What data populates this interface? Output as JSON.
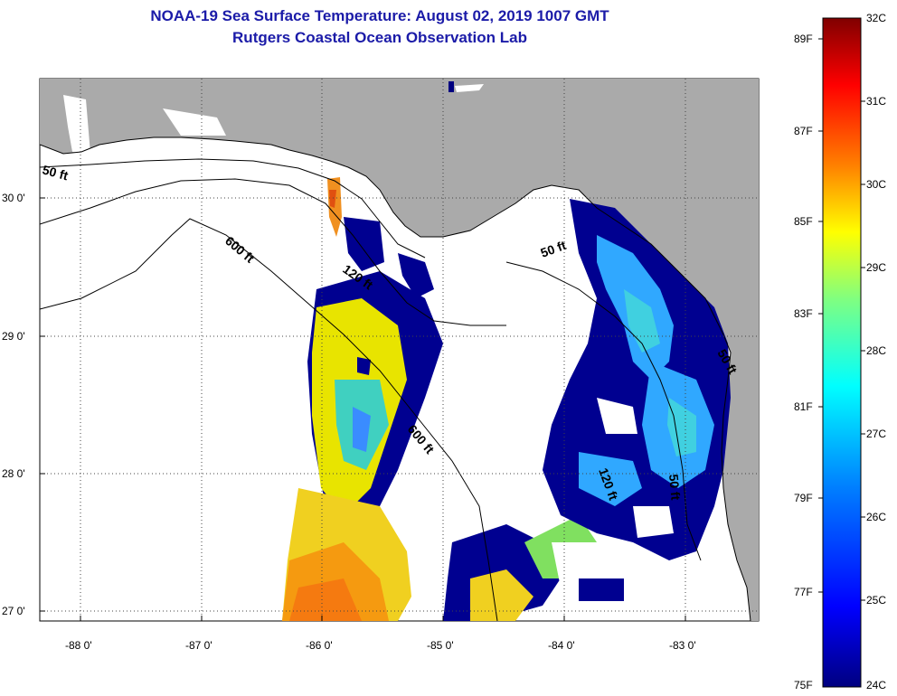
{
  "header": {
    "title_line1": "NOAA-19 Sea Surface Temperature:  August 02, 2019 1007 GMT",
    "title_line2": "Rutgers Coastal Ocean Observation Lab"
  },
  "map": {
    "lon_ticks": [
      "-88 0'",
      "-87 0'",
      "-86 0'",
      "-85 0'",
      "-84 0'",
      "-83 0'"
    ],
    "lat_ticks": [
      "30 0'",
      "29 0'",
      "28 0'",
      "27 0'"
    ],
    "contours": [
      {
        "label": "50 ft"
      },
      {
        "label": "600 ft"
      },
      {
        "label": "120 ft"
      },
      {
        "label": "600 ft"
      },
      {
        "label": "50 ft"
      },
      {
        "label": "120 ft"
      },
      {
        "label": "50 ft"
      },
      {
        "label": "50 ft"
      }
    ],
    "land_color": "#aaaaaa",
    "no_data_color": "#ffffff"
  },
  "colorbar": {
    "fahrenheit_labels": [
      "89F",
      "87F",
      "85F",
      "83F",
      "81F",
      "79F",
      "77F",
      "75F"
    ],
    "celsius_labels": [
      "32C",
      "31C",
      "30C",
      "29C",
      "28C",
      "27C",
      "26C",
      "25C",
      "24C"
    ],
    "range_c": [
      24,
      32
    ],
    "stops": [
      "#000080",
      "#0000ff",
      "#0080ff",
      "#00ffff",
      "#80ff80",
      "#ffff00",
      "#ff8000",
      "#ff0000",
      "#800000"
    ]
  }
}
